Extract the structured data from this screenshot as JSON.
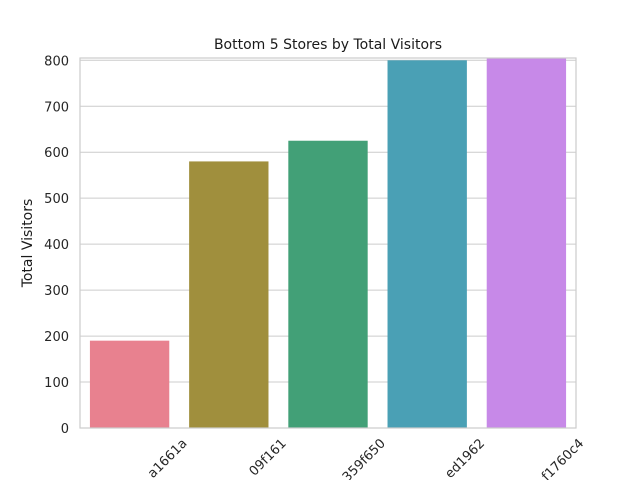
{
  "chart_data": {
    "type": "bar",
    "title": "Bottom 5 Stores by Total Visitors",
    "xlabel": "",
    "ylabel": "Total Visitors",
    "ylim": [
      0,
      805
    ],
    "yticks": [
      0,
      100,
      200,
      300,
      400,
      500,
      600,
      700,
      800
    ],
    "grid": true,
    "categories": [
      "a1661a",
      "09f161",
      "359f650",
      "ed1962",
      "f1760c4"
    ],
    "values": [
      190,
      580,
      625,
      800,
      804
    ],
    "colors": [
      "#e8818f",
      "#a08f3d",
      "#42a077",
      "#4aa0b5",
      "#c789e8"
    ]
  }
}
